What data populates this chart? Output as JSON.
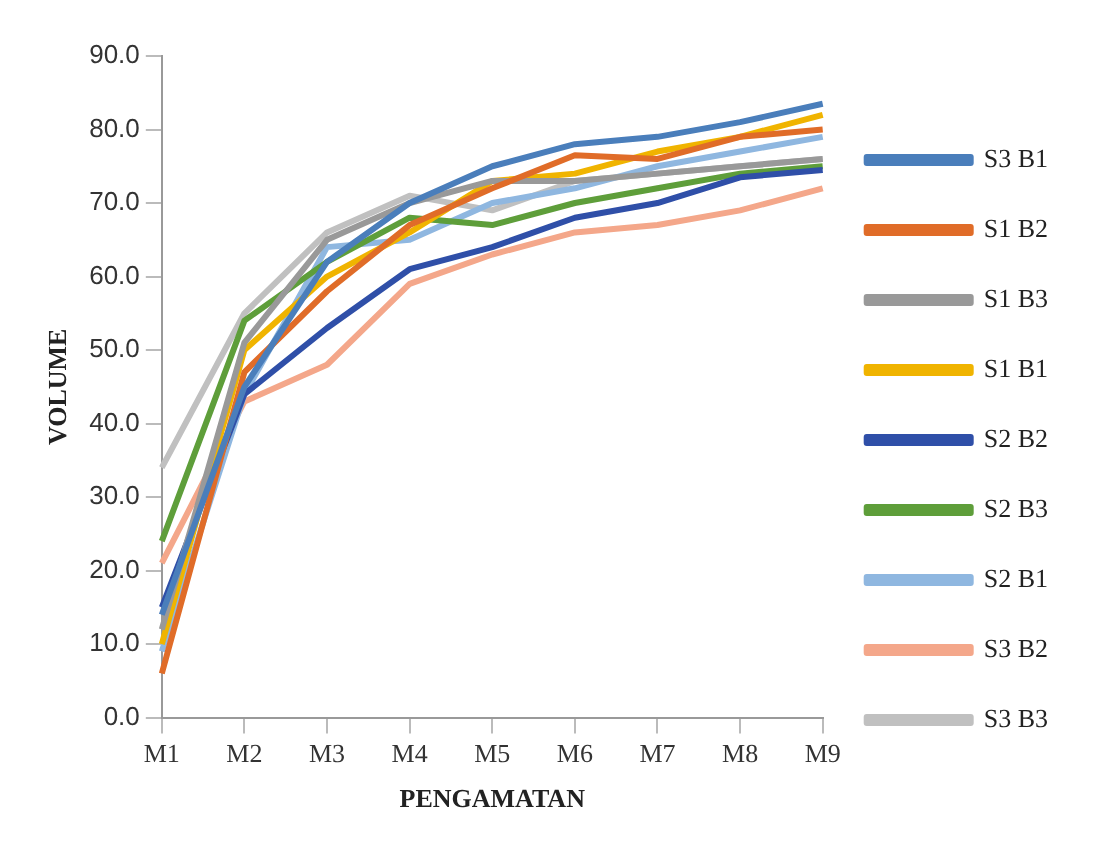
{
  "chart_data": {
    "type": "line",
    "xlabel": "PENGAMATAN",
    "ylabel": "VOLUME",
    "categories": [
      "M1",
      "M2",
      "M3",
      "M4",
      "M5",
      "M6",
      "M7",
      "M8",
      "M9"
    ],
    "ylim": [
      0,
      90
    ],
    "yticks": [
      {
        "value": 0,
        "label": "0.0"
      },
      {
        "value": 10,
        "label": "10.0"
      },
      {
        "value": 20,
        "label": "20.0"
      },
      {
        "value": 30,
        "label": "30.0"
      },
      {
        "value": 40,
        "label": "40.0"
      },
      {
        "value": 50,
        "label": "50.0"
      },
      {
        "value": 60,
        "label": "60.0"
      },
      {
        "value": 70,
        "label": "70.0"
      },
      {
        "value": 80,
        "label": "80.0"
      },
      {
        "value": 90,
        "label": "90.0"
      }
    ],
    "grid": false,
    "legend": "right",
    "marker": "none",
    "line_style": "solid",
    "series": [
      {
        "name": "S3 B1",
        "color": "#4a7ebb",
        "values": [
          14,
          45,
          62,
          70,
          75,
          78,
          79,
          81,
          83.5
        ]
      },
      {
        "name": "S1 B2",
        "color": "#e06c28",
        "values": [
          6,
          47,
          58,
          67,
          72,
          76.5,
          76,
          79,
          80
        ]
      },
      {
        "name": "S1 B3",
        "color": "#999999",
        "values": [
          12,
          51,
          65,
          70,
          73,
          73,
          74,
          75,
          76
        ]
      },
      {
        "name": "S1 B1",
        "color": "#f0b400",
        "values": [
          10,
          50,
          60,
          66,
          73,
          74,
          77,
          79,
          82
        ]
      },
      {
        "name": "S2 B2",
        "color": "#2f4fa8",
        "values": [
          15,
          44,
          53,
          61,
          64,
          68,
          70,
          73.5,
          74.5
        ]
      },
      {
        "name": "S2 B3",
        "color": "#5e9e3a",
        "values": [
          24,
          54,
          62,
          68,
          67,
          70,
          72,
          74,
          75
        ]
      },
      {
        "name": "S2 B1",
        "color": "#8fb7e0",
        "values": [
          9,
          44,
          64,
          65,
          70,
          72,
          75,
          77,
          79
        ]
      },
      {
        "name": "S3 B2",
        "color": "#f4a78a",
        "values": [
          21,
          43,
          48,
          59,
          63,
          66,
          67,
          69,
          72
        ]
      },
      {
        "name": "S3 B3",
        "color": "#c0c0c0",
        "values": [
          34,
          55,
          66,
          71,
          69,
          73,
          74,
          75,
          76
        ]
      }
    ]
  }
}
